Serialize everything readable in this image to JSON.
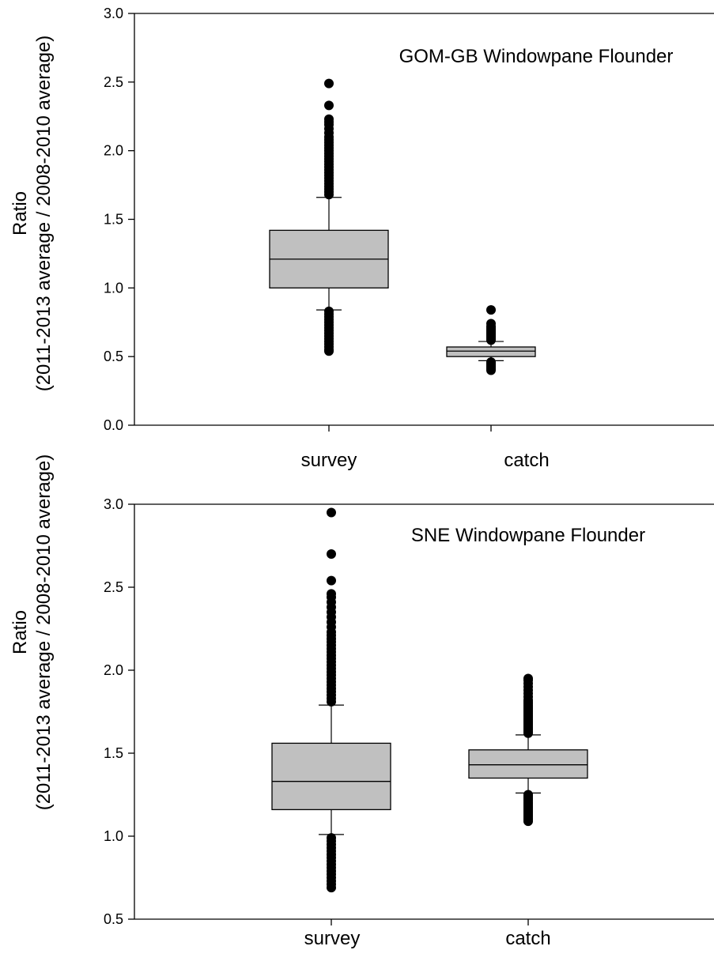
{
  "chart_data": [
    {
      "type": "box",
      "title": "GOM-GB Windowpane Flounder",
      "ylabel_line1": "Ratio",
      "ylabel_line2": "(2011-2013 average / 2008-2010 average)",
      "xlabel": "",
      "ylim": [
        0.0,
        3.0
      ],
      "yticks": [
        "0.0",
        "0.5",
        "1.0",
        "1.5",
        "2.0",
        "2.5",
        "3.0"
      ],
      "ytick_values": [
        0.0,
        0.5,
        1.0,
        1.5,
        2.0,
        2.5,
        3.0
      ],
      "categories": [
        "survey",
        "catch"
      ],
      "box_color": "#c0c0c0",
      "boxes": [
        {
          "category": "survey",
          "whisker_low": 0.84,
          "q1": 1.0,
          "median": 1.21,
          "q3": 1.42,
          "whisker_high": 1.66,
          "outliers_low": [
            0.54,
            0.55,
            0.57,
            0.59,
            0.61,
            0.63,
            0.65,
            0.67,
            0.69,
            0.71,
            0.73,
            0.75,
            0.77,
            0.79,
            0.81,
            0.83
          ],
          "outliers_high": [
            1.68,
            1.7,
            1.72,
            1.74,
            1.76,
            1.78,
            1.8,
            1.82,
            1.84,
            1.86,
            1.88,
            1.9,
            1.92,
            1.94,
            1.96,
            1.98,
            2.0,
            2.02,
            2.04,
            2.06,
            2.08,
            2.1,
            2.13,
            2.16,
            2.19,
            2.21,
            2.23,
            2.33,
            2.49
          ]
        },
        {
          "category": "catch",
          "whisker_low": 0.47,
          "q1": 0.5,
          "median": 0.54,
          "q3": 0.57,
          "whisker_high": 0.61,
          "outliers_low": [
            0.4,
            0.41,
            0.42,
            0.43,
            0.44,
            0.45,
            0.46
          ],
          "outliers_high": [
            0.62,
            0.63,
            0.64,
            0.65,
            0.66,
            0.67,
            0.68,
            0.69,
            0.7,
            0.71,
            0.72,
            0.74,
            0.84
          ]
        }
      ]
    },
    {
      "type": "box",
      "title": "SNE Windowpane Flounder",
      "ylabel_line1": "Ratio",
      "ylabel_line2": "(2011-2013 average / 2008-2010 average)",
      "xlabel": "",
      "ylim": [
        0.5,
        3.0
      ],
      "yticks": [
        "0.5",
        "1.0",
        "1.5",
        "2.0",
        "2.5",
        "3.0"
      ],
      "ytick_values": [
        0.5,
        1.0,
        1.5,
        2.0,
        2.5,
        3.0
      ],
      "categories": [
        "survey",
        "catch"
      ],
      "box_color": "#c0c0c0",
      "boxes": [
        {
          "category": "survey",
          "whisker_low": 1.01,
          "q1": 1.16,
          "median": 1.33,
          "q3": 1.56,
          "whisker_high": 1.79,
          "outliers_low": [
            0.69,
            0.71,
            0.73,
            0.75,
            0.77,
            0.79,
            0.81,
            0.83,
            0.85,
            0.87,
            0.89,
            0.91,
            0.93,
            0.95,
            0.97,
            0.99
          ],
          "outliers_high": [
            1.81,
            1.83,
            1.85,
            1.87,
            1.89,
            1.91,
            1.93,
            1.95,
            1.97,
            1.99,
            2.01,
            2.03,
            2.05,
            2.07,
            2.09,
            2.11,
            2.13,
            2.15,
            2.17,
            2.19,
            2.21,
            2.23,
            2.26,
            2.29,
            2.32,
            2.35,
            2.38,
            2.41,
            2.44,
            2.46,
            2.54,
            2.7,
            2.95
          ]
        },
        {
          "category": "catch",
          "whisker_low": 1.26,
          "q1": 1.35,
          "median": 1.43,
          "q3": 1.52,
          "whisker_high": 1.61,
          "outliers_low": [
            1.09,
            1.1,
            1.11,
            1.12,
            1.13,
            1.14,
            1.15,
            1.16,
            1.17,
            1.18,
            1.19,
            1.2,
            1.21,
            1.22,
            1.23,
            1.24,
            1.25
          ],
          "outliers_high": [
            1.62,
            1.63,
            1.64,
            1.65,
            1.66,
            1.67,
            1.68,
            1.69,
            1.7,
            1.71,
            1.72,
            1.73,
            1.74,
            1.75,
            1.76,
            1.77,
            1.78,
            1.79,
            1.8,
            1.81,
            1.82,
            1.84,
            1.86,
            1.88,
            1.9,
            1.92,
            1.94,
            1.95
          ]
        }
      ]
    }
  ]
}
